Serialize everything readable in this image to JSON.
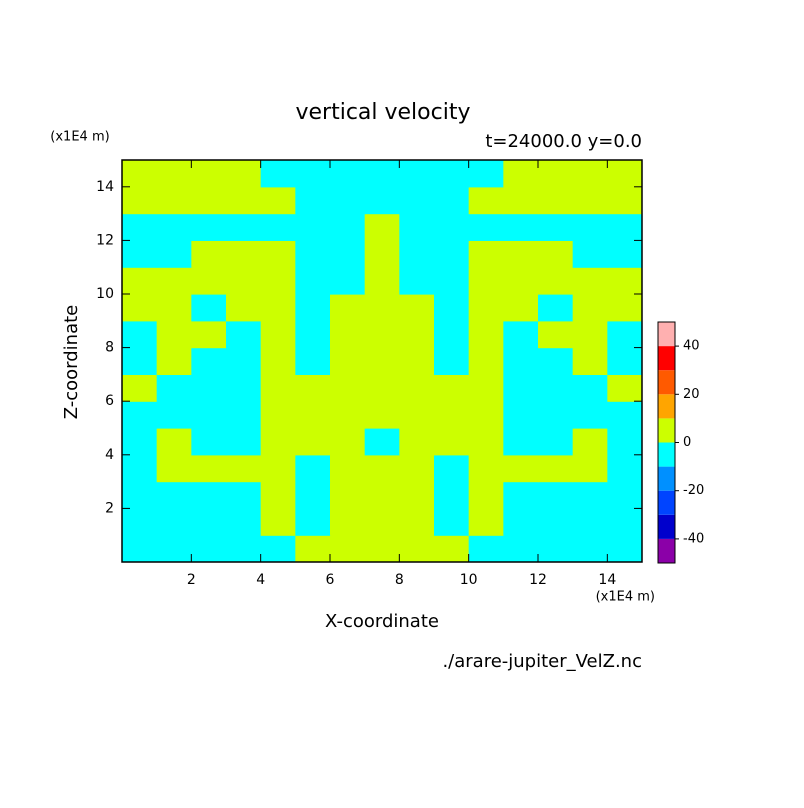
{
  "chart_data": {
    "type": "contour",
    "title": "vertical velocity",
    "subtitle": "t=24000.0 y=0.0",
    "x_label": "X-coordinate",
    "y_label": "Z-coordinate",
    "x_unit": "(x1E4 m)",
    "y_unit": "(x1E4 m)",
    "source": "./arare-jupiter_VelZ.nc",
    "xlim": [
      0,
      15
    ],
    "ylim": [
      0,
      15
    ],
    "xticks": [
      2,
      4,
      6,
      8,
      10,
      12,
      14
    ],
    "yticks": [
      2,
      4,
      6,
      8,
      10,
      12,
      14
    ],
    "z": [
      [
        -5,
        -5,
        -5,
        -5,
        -5,
        5,
        5,
        5,
        5,
        5,
        -5,
        -5,
        -5,
        -5,
        -5
      ],
      [
        -5,
        -5,
        -5,
        -5,
        5,
        -5,
        5,
        5,
        5,
        -5,
        5,
        -5,
        -5,
        -5,
        -5
      ],
      [
        -5,
        -5,
        -5,
        -5,
        5,
        -5,
        5,
        5,
        5,
        -5,
        5,
        -5,
        -5,
        -5,
        -5
      ],
      [
        -5,
        5,
        5,
        5,
        5,
        -5,
        5,
        5,
        5,
        -5,
        5,
        5,
        5,
        5,
        -5
      ],
      [
        -5,
        5,
        -5,
        -5,
        5,
        5,
        5,
        -5,
        5,
        5,
        5,
        -5,
        -5,
        5,
        -5
      ],
      [
        -5,
        -5,
        -5,
        -5,
        5,
        5,
        5,
        5,
        5,
        5,
        5,
        -5,
        -5,
        -5,
        -5
      ],
      [
        5,
        -5,
        -5,
        -5,
        5,
        5,
        5,
        5,
        5,
        5,
        5,
        -5,
        -5,
        -5,
        5
      ],
      [
        -5,
        5,
        -5,
        -5,
        5,
        -5,
        5,
        5,
        5,
        -5,
        5,
        -5,
        -5,
        5,
        -5
      ],
      [
        -5,
        5,
        5,
        -5,
        5,
        -5,
        5,
        5,
        5,
        -5,
        5,
        -5,
        5,
        5,
        -5
      ],
      [
        5,
        5,
        -5,
        5,
        5,
        -5,
        5,
        5,
        5,
        -5,
        5,
        5,
        -5,
        5,
        5
      ],
      [
        5,
        5,
        5,
        5,
        5,
        -5,
        -5,
        5,
        -5,
        -5,
        5,
        5,
        5,
        5,
        5
      ],
      [
        -5,
        -5,
        5,
        5,
        5,
        -5,
        -5,
        5,
        -5,
        -5,
        5,
        5,
        5,
        -5,
        -5
      ],
      [
        -5,
        -5,
        -5,
        -5,
        -5,
        -5,
        -5,
        5,
        -5,
        -5,
        -5,
        -5,
        -5,
        -5,
        -5
      ],
      [
        5,
        5,
        5,
        5,
        5,
        -5,
        -5,
        -5,
        -5,
        -5,
        5,
        5,
        5,
        5,
        5
      ],
      [
        5,
        5,
        5,
        5,
        -5,
        -5,
        -5,
        -5,
        -5,
        -5,
        -5,
        5,
        5,
        5,
        5
      ]
    ],
    "levels": [
      -50,
      -40,
      -30,
      -20,
      -10,
      0,
      10,
      20,
      30,
      40,
      50
    ],
    "level_colors": [
      "#8b00a8",
      "#0000cc",
      "#0044ff",
      "#0090ff",
      "#00ffff",
      "#ccff00",
      "#ffa500",
      "#ff5a00",
      "#ff0000",
      "#ffb0b0"
    ],
    "colorbar_ticks": [
      -40,
      -20,
      0,
      20,
      40
    ]
  }
}
